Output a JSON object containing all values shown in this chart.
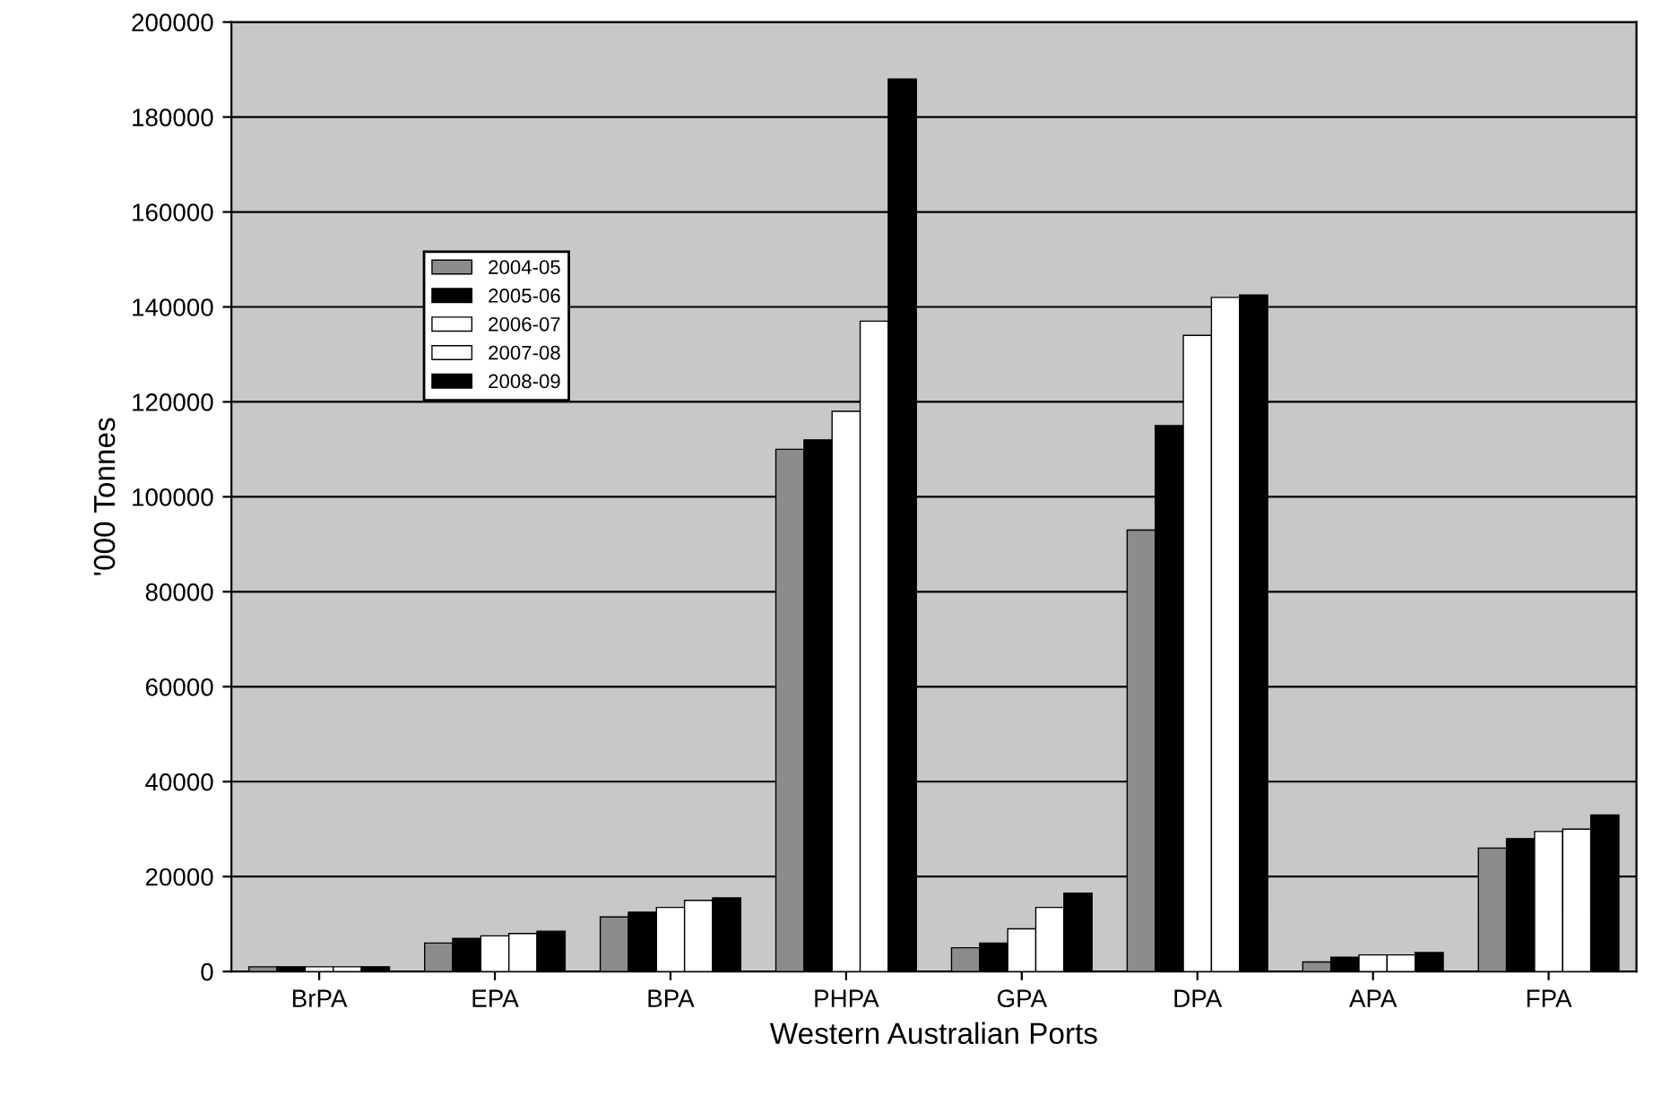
{
  "chart_data": {
    "type": "bar",
    "xlabel": "Western Australian Ports",
    "ylabel": "'000 Tonnes",
    "categories": [
      "BrPA",
      "EPA",
      "BPA",
      "PHPA",
      "GPA",
      "DPA",
      "APA",
      "FPA"
    ],
    "series": [
      {
        "name": "2004-05",
        "color": "#8c8c8c",
        "values": [
          1000,
          6000,
          11500,
          110000,
          5000,
          93000,
          2000,
          26000
        ]
      },
      {
        "name": "2005-06",
        "color": "#000000",
        "values": [
          1000,
          7000,
          12500,
          112000,
          6000,
          115000,
          3000,
          28000
        ]
      },
      {
        "name": "2006-07",
        "color": "#ffffff",
        "values": [
          1000,
          7500,
          13500,
          118000,
          9000,
          134000,
          3500,
          29500
        ]
      },
      {
        "name": "2007-08",
        "color": "#ffffff",
        "values": [
          1000,
          8000,
          15000,
          137000,
          13500,
          142000,
          3500,
          30000
        ]
      },
      {
        "name": "2008-09",
        "color": "#000000",
        "values": [
          1000,
          8500,
          15500,
          188000,
          16500,
          142500,
          4000,
          33000
        ]
      }
    ],
    "ylim": [
      0,
      200000
    ],
    "yticks": [
      0,
      20000,
      40000,
      60000,
      80000,
      100000,
      120000,
      140000,
      160000,
      180000,
      200000
    ],
    "grid": "y",
    "legend": "center left"
  }
}
